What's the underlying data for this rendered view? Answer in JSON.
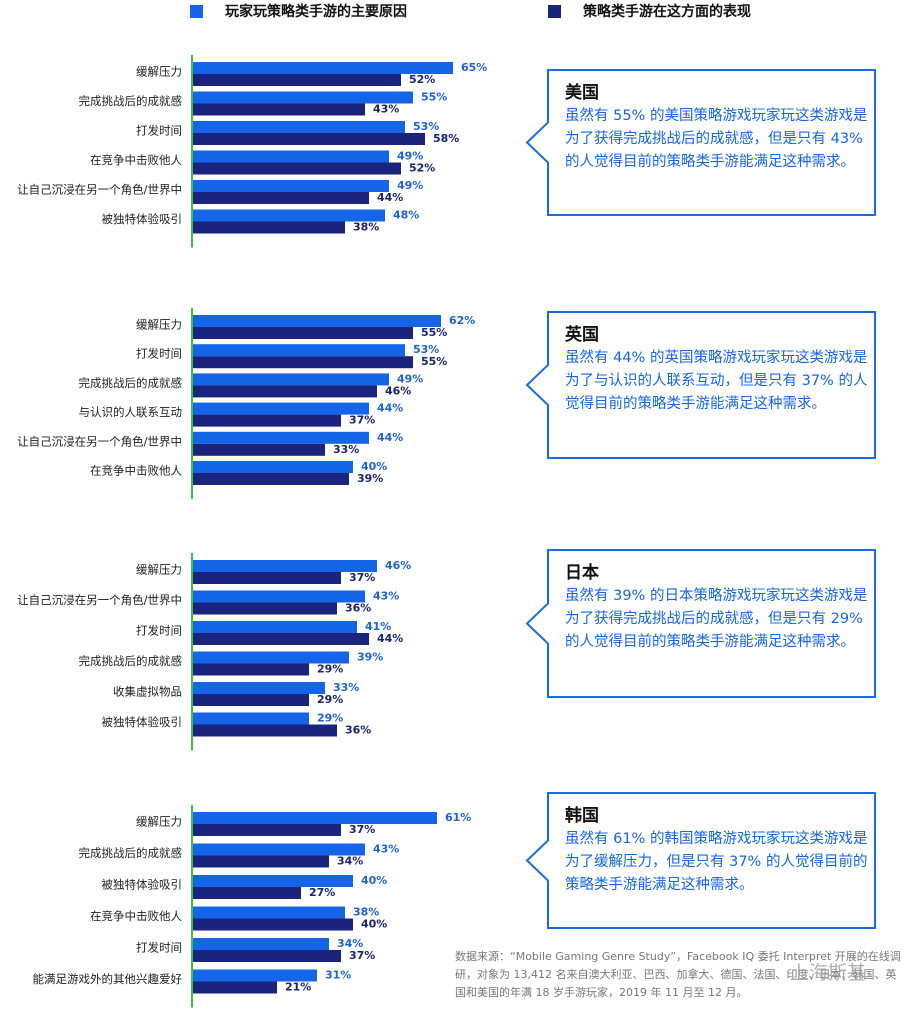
{
  "legend": [
    {
      "name": "玩家玩策略类手游的主要原因",
      "color": "#1565e8"
    },
    {
      "name": "策略类手游在这方面的表现",
      "color": "#1a237e"
    }
  ],
  "chart_data": [
    {
      "type": "bar",
      "title": "美国",
      "annotation": "虽然有 55% 的美国策略游戏玩家玩这类游戏是为了获得完成挑战后的成就感，但是只有 43% 的人觉得目前的策略类手游能满足这种需求。",
      "categories": [
        "缓解压力",
        "完成挑战后的成就感",
        "打发时间",
        "在竞争中击败他人",
        "让自己沉浸在另一个角色/世界中",
        "被独特体验吸引"
      ],
      "xlim": [
        0,
        100
      ],
      "series": [
        {
          "color": "#1565e8",
          "values": [
            65,
            55,
            53,
            49,
            49,
            48
          ],
          "value_labels": [
            "65%",
            "55%",
            "53%",
            "49%",
            "49%",
            "48%"
          ]
        },
        {
          "color": "#1a237e",
          "values": [
            52,
            43,
            58,
            52,
            44,
            38
          ],
          "value_labels": [
            "52%",
            "43%",
            "58%",
            "52%",
            "44%",
            "38%"
          ]
        }
      ]
    },
    {
      "type": "bar",
      "title": "英国",
      "annotation": "虽然有 44% 的英国策略游戏玩家玩这类游戏是为了与认识的人联系互动，但是只有 37% 的人觉得目前的策略类手游能满足这种需求。",
      "categories": [
        "缓解压力",
        "打发时间",
        "完成挑战后的成就感",
        "与认识的人联系互动",
        "让自己沉浸在另一个角色/世界中",
        "在竞争中击败他人"
      ],
      "xlim": [
        0,
        100
      ],
      "series": [
        {
          "color": "#1565e8",
          "values": [
            62,
            53,
            49,
            44,
            44,
            40
          ],
          "value_labels": [
            "62%",
            "53%",
            "49%",
            "44%",
            "44%",
            "40%"
          ]
        },
        {
          "color": "#1a237e",
          "values": [
            55,
            55,
            46,
            37,
            33,
            39
          ],
          "value_labels": [
            "55%",
            "55%",
            "46%",
            "37%",
            "33%",
            "39%"
          ]
        }
      ]
    },
    {
      "type": "bar",
      "title": "日本",
      "annotation": "虽然有 39% 的日本策略游戏玩家玩这类游戏是为了获得完成挑战后的成就感，但是只有 29% 的人觉得目前的策略类手游能满足这种需求。",
      "categories": [
        "缓解压力",
        "让自己沉浸在另一个角色/世界中",
        "打发时间",
        "完成挑战后的成就感",
        "收集虚拟物品",
        "被独特体验吸引"
      ],
      "xlim": [
        0,
        100
      ],
      "series": [
        {
          "color": "#1565e8",
          "values": [
            46,
            43,
            41,
            39,
            33,
            29
          ],
          "value_labels": [
            "46%",
            "43%",
            "41%",
            "39%",
            "33%",
            "29%"
          ]
        },
        {
          "color": "#1a237e",
          "values": [
            37,
            36,
            44,
            29,
            29,
            36
          ],
          "value_labels": [
            "37%",
            "36%",
            "44%",
            "29%",
            "29%",
            "36%"
          ]
        }
      ]
    },
    {
      "type": "bar",
      "title": "韩国",
      "annotation": "虽然有 61% 的韩国策略游戏玩家玩这类游戏是为了缓解压力，但是只有 37% 的人觉得目前的策略类手游能满足这种需求。",
      "categories": [
        "缓解压力",
        "完成挑战后的成就感",
        "被独特体验吸引",
        "在竞争中击败他人",
        "打发时间",
        "能满足游戏外的其他兴趣爱好"
      ],
      "xlim": [
        0,
        100
      ],
      "series": [
        {
          "color": "#1565e8",
          "values": [
            61,
            43,
            40,
            38,
            34,
            31
          ],
          "value_labels": [
            "61%",
            "43%",
            "40%",
            "38%",
            "34%",
            "31%"
          ]
        },
        {
          "color": "#1a237e",
          "values": [
            37,
            34,
            27,
            40,
            37,
            21
          ],
          "value_labels": [
            "37%",
            "34%",
            "27%",
            "40%",
            "37%",
            "21%"
          ]
        }
      ]
    }
  ],
  "source": "数据来源：“Mobile Gaming Genre Study”，Facebook IQ 委托 Interpret 开展的在线调研，对象为 13,412 名来自澳大利亚、巴西、加拿大、德国、法国、印度、日本、韩国、英国和美国的年满 18 岁手游玩家，2019 年 11 月至 12 月。",
  "watermark": "上海斯基"
}
